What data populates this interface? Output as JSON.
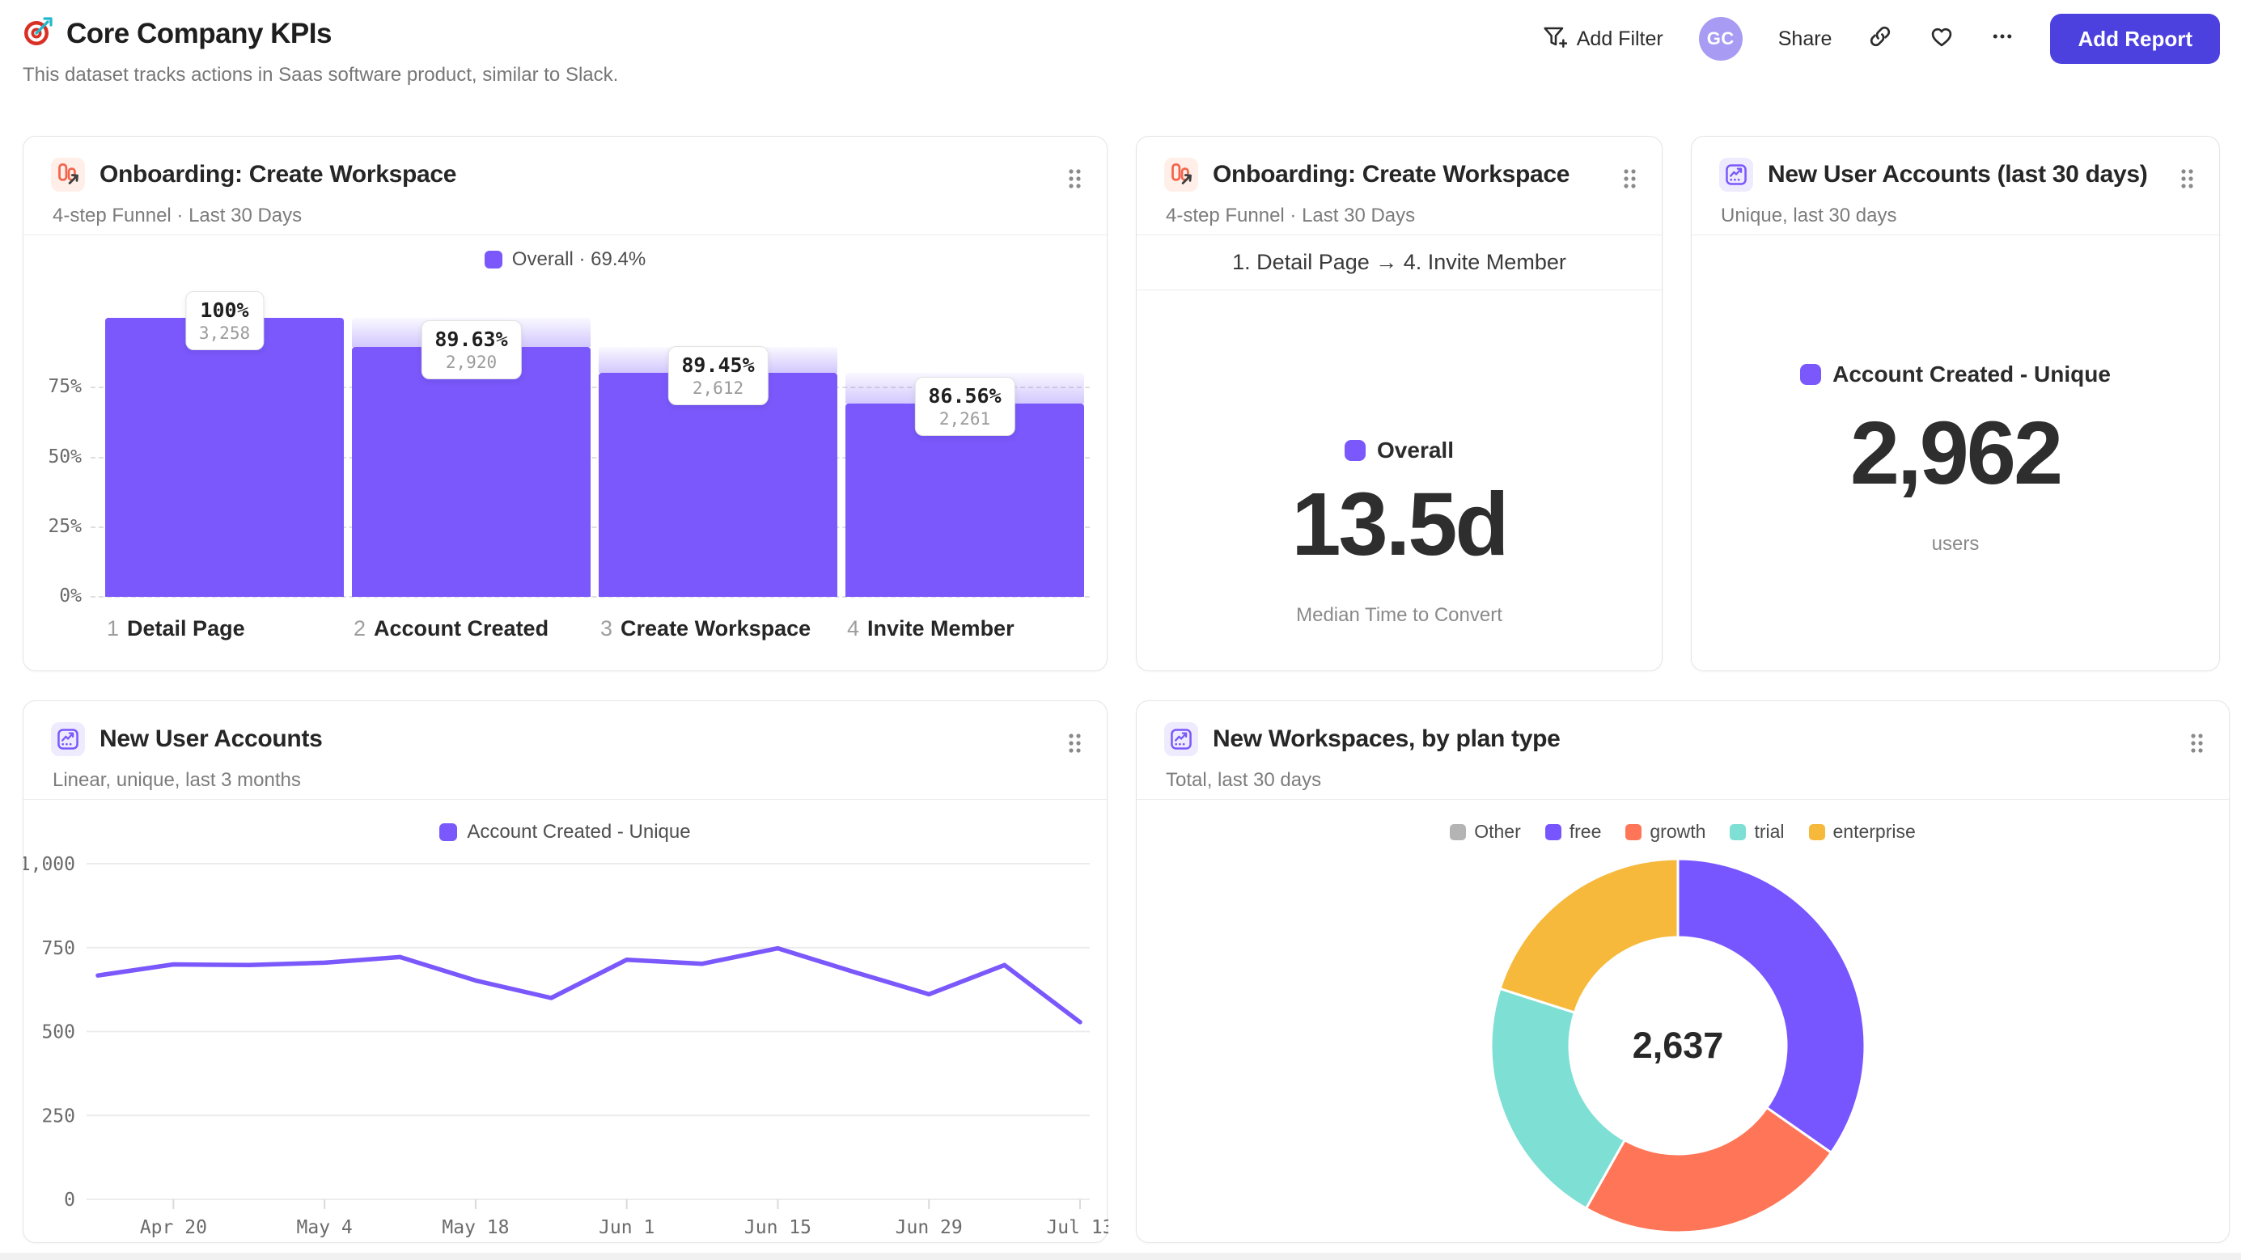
{
  "header": {
    "title": "Core Company KPIs",
    "subtitle": "This dataset tracks actions in Saas software product, similar to Slack.",
    "add_filter_label": "Add Filter",
    "avatar_initials": "GC",
    "share_label": "Share",
    "add_report_label": "Add Report",
    "colors": {
      "accent": "#4C40DE",
      "avatar_bg": "#A89BF3"
    }
  },
  "cards": {
    "funnel": {
      "title": "Onboarding: Create Workspace",
      "subtitle": "4-step Funnel · Last 30 Days",
      "legend": "Overall · 69.4%"
    },
    "median": {
      "title": "Onboarding: Create Workspace",
      "subtitle": "4-step Funnel · Last 30 Days",
      "steps_range": "1. Detail Page → 4. Invite Member",
      "legend": "Overall",
      "value": "13.5d",
      "caption": "Median Time to Convert"
    },
    "new_accounts": {
      "title": "New User Accounts (last 30 days)",
      "subtitle": "Unique, last 30 days",
      "legend": "Account Created - Unique",
      "value": "2,962",
      "caption": "users"
    },
    "accounts_trend": {
      "title": "New User Accounts",
      "subtitle": "Linear, unique, last 3 months",
      "legend": "Account Created - Unique"
    },
    "workspaces": {
      "title": "New Workspaces, by plan type",
      "subtitle": "Total, last 30 days",
      "center_value": "2,637"
    }
  },
  "chart_data": [
    {
      "type": "bar",
      "name": "onboarding-funnel",
      "title": "Onboarding: Create Workspace",
      "legend": "Overall · 69.4%",
      "categories": [
        "Detail Page",
        "Account Created",
        "Create Workspace",
        "Invite Member"
      ],
      "step_numbers": [
        "1",
        "2",
        "3",
        "4"
      ],
      "counts": [
        3258,
        2920,
        2612,
        2261
      ],
      "count_labels": [
        "3,258",
        "2,920",
        "2,612",
        "2,261"
      ],
      "step_conversion_pct": [
        100,
        89.63,
        89.45,
        86.56
      ],
      "pct_labels": [
        "100%",
        "89.63%",
        "89.45%",
        "86.56%"
      ],
      "overall_pct": [
        100,
        89.63,
        80.17,
        69.4
      ],
      "overall_conversion": "69.4%",
      "y_ticks": [
        {
          "label": "75%",
          "value": 75
        },
        {
          "label": "50%",
          "value": 50
        },
        {
          "label": "25%",
          "value": 25
        },
        {
          "label": "0%",
          "value": 0
        }
      ],
      "ylim": [
        0,
        100
      ],
      "color": "#7A58FB"
    },
    {
      "type": "line",
      "name": "new-user-accounts-trend",
      "title": "New User Accounts",
      "series_label": "Account Created - Unique",
      "x": [
        "Apr 13",
        "Apr 20",
        "Apr 27",
        "May 4",
        "May 11",
        "May 18",
        "May 25",
        "Jun 1",
        "Jun 8",
        "Jun 15",
        "Jun 22",
        "Jun 29",
        "Jul 6",
        "Jul 13"
      ],
      "values": [
        667,
        700,
        698,
        705,
        722,
        652,
        600,
        714,
        702,
        748,
        678,
        611,
        698,
        528
      ],
      "x_tick_labels": [
        "Apr 20",
        "May 4",
        "May 18",
        "Jun 1",
        "Jun 15",
        "Jun 29",
        "Jul 13"
      ],
      "x_tick_indices": [
        1,
        3,
        5,
        7,
        9,
        11,
        13
      ],
      "y_ticks": [
        {
          "label": "0",
          "value": 0
        },
        {
          "label": "250",
          "value": 250
        },
        {
          "label": "500",
          "value": 500
        },
        {
          "label": "750",
          "value": 750
        },
        {
          "label": "1,000",
          "value": 1000
        }
      ],
      "ylim": [
        0,
        1000
      ],
      "grid": true,
      "color": "#7A58FB"
    },
    {
      "type": "pie",
      "name": "new-workspaces-by-plan",
      "title": "New Workspaces, by plan type",
      "total": 2637,
      "center_label": "2,637",
      "segments": [
        {
          "label": "free",
          "value": 915,
          "color": "#7856FF"
        },
        {
          "label": "growth",
          "value": 619,
          "color": "#FF7557"
        },
        {
          "label": "trial",
          "value": 574,
          "color": "#7EDFD4"
        },
        {
          "label": "enterprise",
          "value": 529,
          "color": "#F6B93C"
        },
        {
          "label": "Other",
          "value": 0,
          "color": "#B4B4B4"
        }
      ],
      "legend_order": [
        "Other",
        "free",
        "growth",
        "trial",
        "enterprise"
      ],
      "legend_position": "top"
    }
  ]
}
